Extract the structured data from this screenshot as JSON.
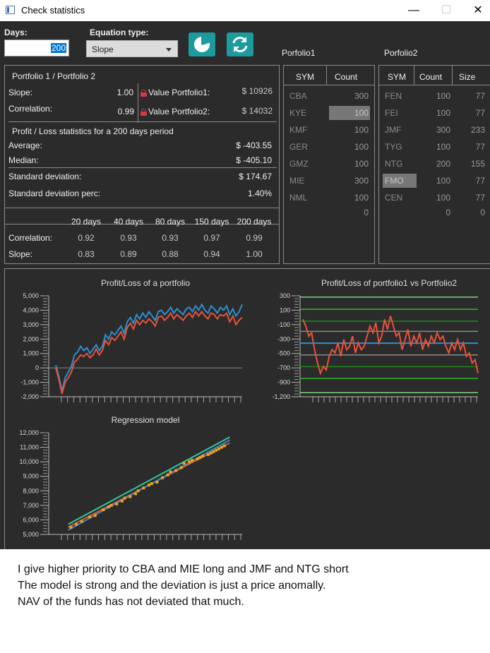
{
  "window": {
    "title": "Check statistics",
    "minimize": "—",
    "maximize": "☐",
    "close": "✕"
  },
  "controls": {
    "days_label": "Days:",
    "days_value": "200",
    "equation_label": "Equation type:",
    "equation_value": "Slope"
  },
  "portfolio_labels": {
    "p1": "Porfolio1",
    "p2": "Porfolio2"
  },
  "summary": {
    "header": "Portfolio 1 / Portfolio 2",
    "slope_label": "Slope:",
    "slope_value": "1.00",
    "correlation_label": "Correlation:",
    "correlation_value": "0.99",
    "value_p1_label": "Value Portfolio1:",
    "value_p1": "$ 10926",
    "value_p2_label": "Value Portfolio2:",
    "value_p2": "$ 14032",
    "pl_header": "Profit / Loss statistics for a 200 days period",
    "average_label": "Average:",
    "average_value": "$ -403.55",
    "median_label": "Median:",
    "median_value": "$ -405.10",
    "std_label": "Standard deviation:",
    "std_value": "$ 174.67",
    "stdp_label": "Standard deviation perc:",
    "stdp_value": "1.40%"
  },
  "periods": {
    "headers": [
      "20 days",
      "40 days",
      "80 days",
      "150 days",
      "200 days"
    ],
    "correlation_label": "Correlation:",
    "correlation": [
      "0.92",
      "0.93",
      "0.93",
      "0.97",
      "0.99"
    ],
    "slope_label": "Slope:",
    "slope": [
      "0.83",
      "0.89",
      "0.88",
      "0.94",
      "1.00"
    ]
  },
  "portfolio1_table": {
    "headers": [
      "SYM",
      "Count"
    ],
    "rows": [
      {
        "sym": "CBA",
        "count": "300"
      },
      {
        "sym": "KYE",
        "count": "100"
      },
      {
        "sym": "KMF",
        "count": "100"
      },
      {
        "sym": "GER",
        "count": "100"
      },
      {
        "sym": "GMZ",
        "count": "100"
      },
      {
        "sym": "MIE",
        "count": "300"
      },
      {
        "sym": "NML",
        "count": "100"
      }
    ],
    "total": "0"
  },
  "portfolio2_table": {
    "headers": [
      "SYM",
      "Count",
      "Size"
    ],
    "rows": [
      {
        "sym": "FEN",
        "count": "100",
        "size": "77"
      },
      {
        "sym": "FEI",
        "count": "100",
        "size": "77"
      },
      {
        "sym": "JMF",
        "count": "300",
        "size": "233"
      },
      {
        "sym": "TYG",
        "count": "100",
        "size": "77"
      },
      {
        "sym": "NTG",
        "count": "200",
        "size": "155"
      },
      {
        "sym": "FMO",
        "count": "100",
        "size": "77"
      },
      {
        "sym": "CEN",
        "count": "100",
        "size": "77"
      }
    ],
    "total_count": "0",
    "total_size": "0"
  },
  "colors": {
    "bg": "#2b2b2b",
    "accent": "#1c9a9e",
    "series_blue": "#2e8fd0",
    "series_red": "#e8533a",
    "green": "#2eb82e",
    "scatter": "#f0a020",
    "reg_line": "#30c8a0"
  },
  "chart_data": [
    {
      "type": "line",
      "title": "Profit/Loss of a portfolio",
      "ylim": [
        -2000,
        5000
      ],
      "yticks": [
        "5,000",
        "4,000",
        "3,000",
        "2,000",
        "1,000",
        "0",
        "-1,000",
        "-2,000"
      ],
      "series": [
        {
          "color": "#2e8fd0",
          "values": [
            200,
            -600,
            -1600,
            -700,
            -300,
            100,
            900,
            1100,
            1500,
            1200,
            1400,
            1000,
            1300,
            1600,
            1200,
            1500,
            2300,
            2000,
            2500,
            2300,
            2600,
            2900,
            2400,
            3200,
            3500,
            3100,
            3700,
            3400,
            3800,
            3500,
            3900,
            3600,
            3300,
            3900,
            4000,
            3700,
            3900,
            4200,
            3800,
            4100,
            3900,
            3700,
            4100,
            4200,
            3900,
            4300,
            4000,
            4400,
            4000,
            3800,
            4300,
            4100,
            3800,
            4200,
            4000,
            4300,
            3700,
            4100,
            3600,
            3900,
            4400
          ]
        },
        {
          "color": "#e8533a",
          "values": [
            0,
            -800,
            -1800,
            -1000,
            -700,
            -300,
            400,
            600,
            900,
            800,
            1000,
            700,
            900,
            1300,
            900,
            1200,
            1900,
            1600,
            2100,
            1900,
            2200,
            2500,
            2000,
            2800,
            3100,
            2700,
            3300,
            3000,
            3300,
            3100,
            3400,
            3200,
            2900,
            3500,
            3600,
            3300,
            3500,
            3800,
            3400,
            3700,
            3500,
            3300,
            3600,
            3800,
            3500,
            3900,
            3600,
            3900,
            3600,
            3400,
            3800,
            3700,
            3400,
            3700,
            3600,
            3800,
            3200,
            3600,
            3000,
            3300,
            3500
          ]
        }
      ]
    },
    {
      "type": "line",
      "title": "Profit/Loss of portfolio1 vs Portfolio2",
      "ylim": [
        -1200,
        300
      ],
      "yticks": [
        "300",
        "100",
        "-100",
        "-300",
        "-500",
        "-700",
        "-900",
        "-1,200"
      ],
      "hlines": [
        {
          "value": 280,
          "color": "#7bd67b"
        },
        {
          "value": 100,
          "color": "#2eb82e"
        },
        {
          "value": -78,
          "color": "#1a8a1a"
        },
        {
          "value": -229,
          "color": "#8a8a8a"
        },
        {
          "value": -404,
          "color": "#2e8fd0"
        },
        {
          "value": -578,
          "color": "#8a8a8a"
        },
        {
          "value": -753,
          "color": "#1a8a1a"
        },
        {
          "value": -928,
          "color": "#2eb82e"
        },
        {
          "value": -1140,
          "color": "#7bd67b"
        }
      ],
      "series": [
        {
          "color": "#e8533a",
          "values": [
            -50,
            -150,
            -300,
            -250,
            -500,
            -700,
            -850,
            -750,
            -800,
            -600,
            -500,
            -550,
            -400,
            -600,
            -350,
            -500,
            -450,
            -300,
            -550,
            -400,
            -500,
            -450,
            -300,
            -150,
            -250,
            -100,
            -400,
            -300,
            -50,
            -200,
            0,
            -150,
            -300,
            -250,
            -500,
            -350,
            -200,
            -450,
            -300,
            -400,
            -250,
            -500,
            -350,
            -450,
            -300,
            -400,
            -250,
            -350,
            -300,
            -450,
            -550,
            -400,
            -500,
            -350,
            -500,
            -400,
            -600,
            -550,
            -700,
            -650,
            -850
          ]
        }
      ]
    },
    {
      "type": "scatter",
      "title": "Regression model",
      "ylim": [
        5000,
        12000
      ],
      "yticks": [
        "12,000",
        "11,000",
        "10,000",
        "9,000",
        "8,000",
        "7,000",
        "6,000",
        "5,000"
      ],
      "points": [
        [
          5.6,
          5.5
        ],
        [
          5.8,
          5.7
        ],
        [
          6.0,
          5.9
        ],
        [
          6.3,
          6.2
        ],
        [
          6.5,
          6.3
        ],
        [
          6.8,
          6.7
        ],
        [
          7.0,
          6.9
        ],
        [
          7.1,
          7.0
        ],
        [
          7.3,
          7.1
        ],
        [
          7.5,
          7.3
        ],
        [
          7.6,
          7.5
        ],
        [
          7.8,
          7.6
        ],
        [
          8.0,
          7.8
        ],
        [
          8.1,
          8.0
        ],
        [
          8.3,
          8.2
        ],
        [
          8.5,
          8.4
        ],
        [
          8.6,
          8.5
        ],
        [
          8.8,
          8.6
        ],
        [
          9.0,
          8.9
        ],
        [
          9.2,
          9.1
        ],
        [
          9.3,
          9.3
        ],
        [
          9.5,
          9.4
        ],
        [
          9.7,
          9.6
        ],
        [
          9.8,
          9.9
        ],
        [
          10.0,
          10.0
        ],
        [
          10.1,
          10.1
        ],
        [
          10.3,
          10.2
        ],
        [
          10.4,
          10.3
        ],
        [
          10.5,
          10.4
        ],
        [
          10.7,
          10.5
        ],
        [
          10.8,
          10.6
        ],
        [
          10.9,
          10.7
        ],
        [
          11.0,
          10.8
        ],
        [
          11.1,
          10.9
        ],
        [
          11.2,
          11.0
        ],
        [
          11.3,
          11.1
        ]
      ],
      "lines": [
        {
          "color": "#30c8a0",
          "from": [
            5.5,
            5.7
          ],
          "to": [
            11.5,
            11.7
          ]
        },
        {
          "color": "#e8533a",
          "from": [
            5.5,
            5.5
          ],
          "to": [
            11.5,
            11.3
          ]
        },
        {
          "color": "#2e8fd0",
          "from": [
            5.5,
            5.3
          ],
          "to": [
            11.5,
            11.5
          ]
        }
      ]
    }
  ],
  "notes": [
    "I give higher priority to CBA and MIE long and JMF and NTG short",
    "The model is strong and the deviation is just a price anomally.",
    "NAV of the funds has not deviated that much."
  ]
}
